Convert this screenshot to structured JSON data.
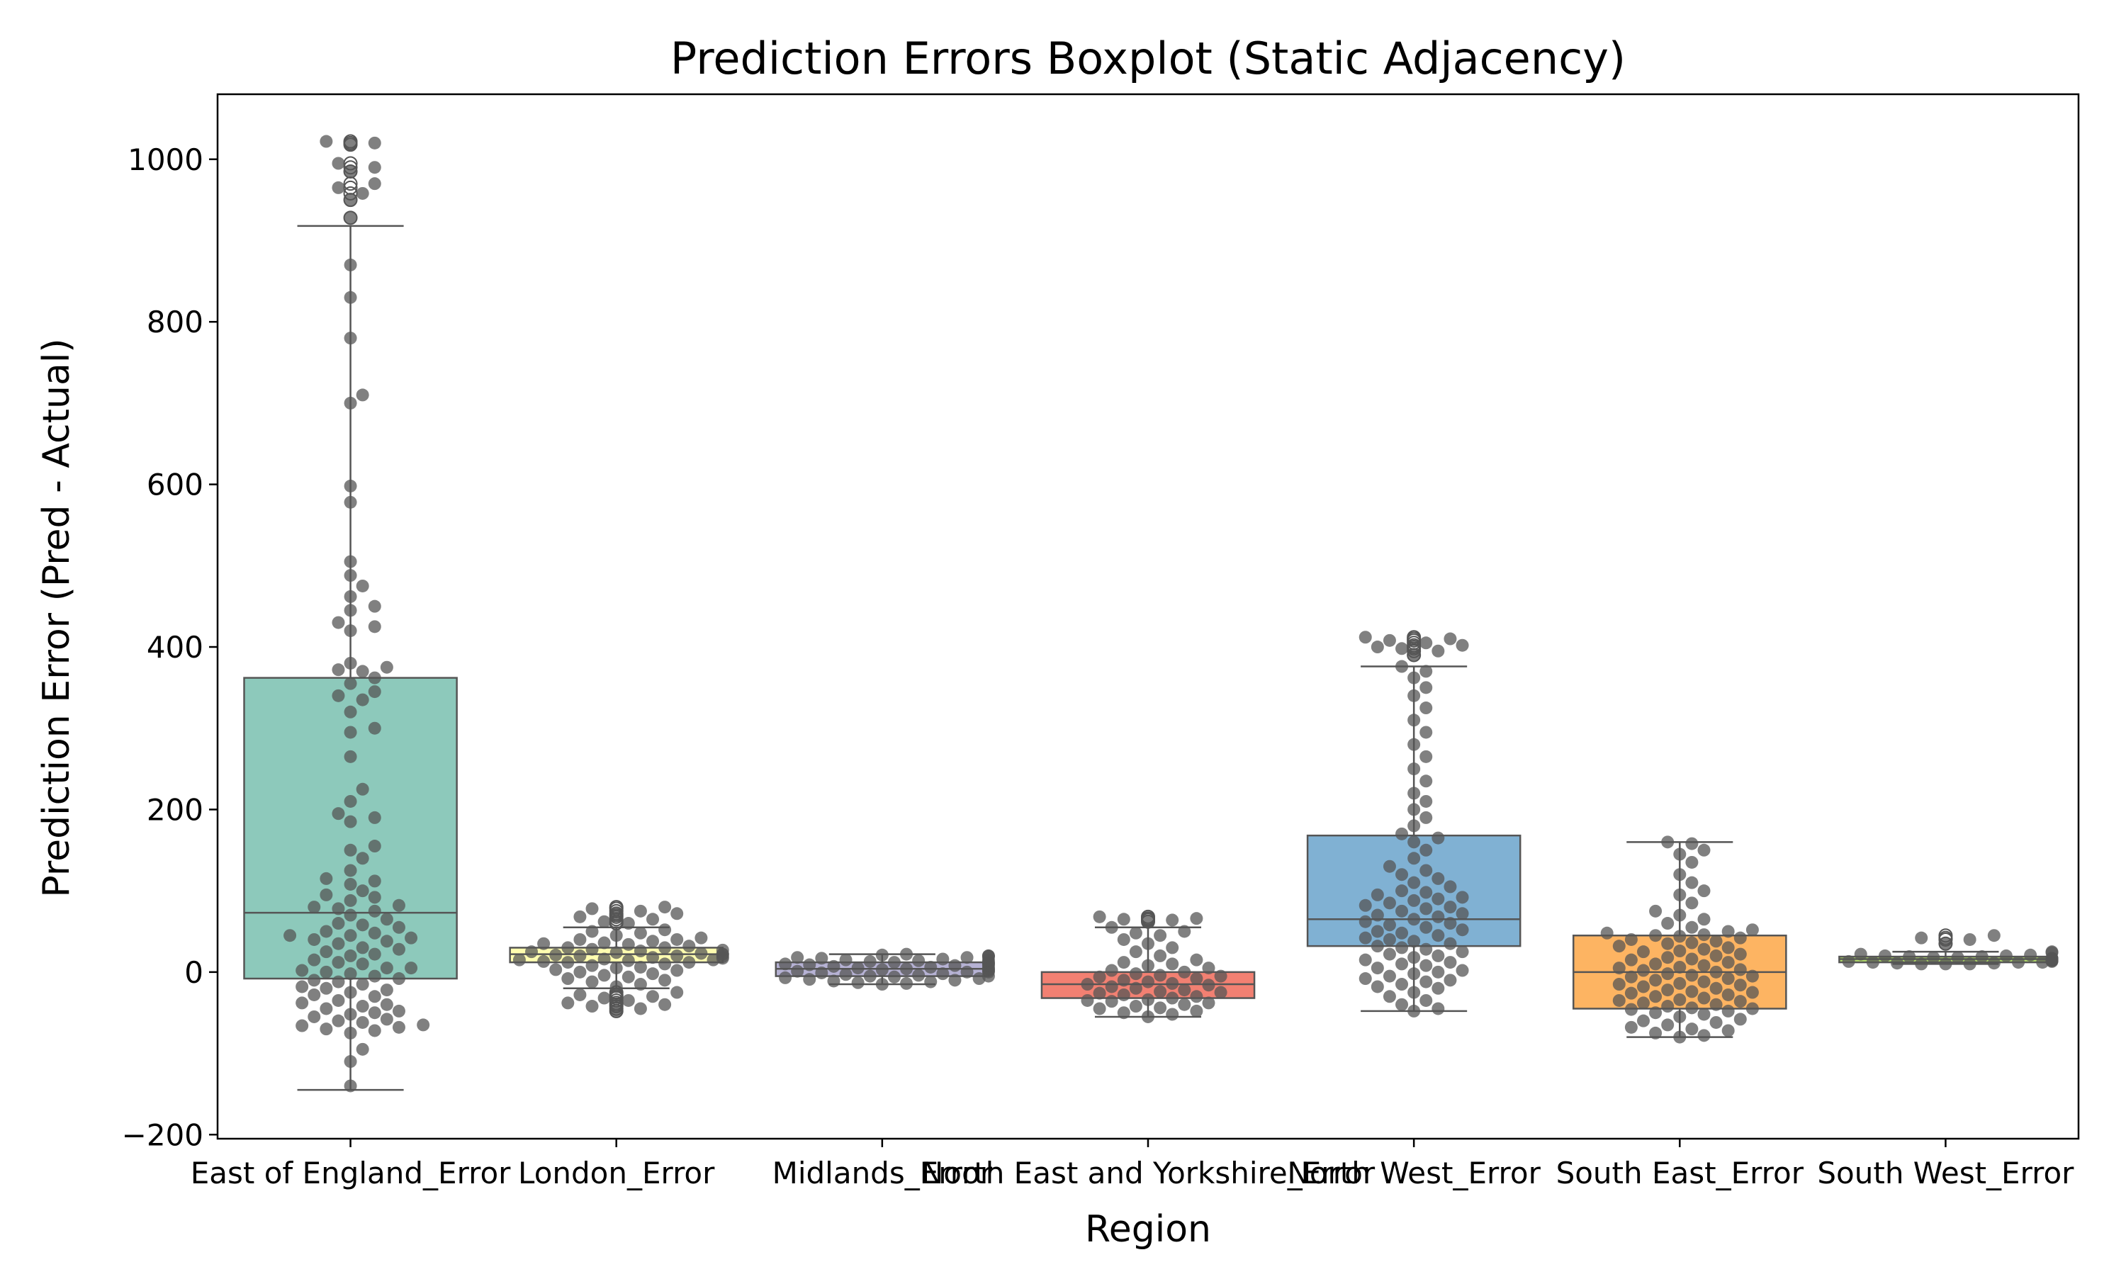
{
  "chart_data": {
    "type": "box",
    "title": "Prediction Errors Boxplot (Static Adjacency)",
    "xlabel": "Region",
    "ylabel": "Prediction Error (Pred - Actual)",
    "ylim": [
      -205,
      1080
    ],
    "yticks": [
      {
        "value": -200,
        "label": "−200"
      },
      {
        "value": 0,
        "label": "0"
      },
      {
        "value": 200,
        "label": "200"
      },
      {
        "value": 400,
        "label": "400"
      },
      {
        "value": 600,
        "label": "600"
      },
      {
        "value": 800,
        "label": "800"
      },
      {
        "value": 1000,
        "label": "1000"
      }
    ],
    "grid": false,
    "overlay": "swarm",
    "point_color": "#555555",
    "categories": [
      "East of England_Error",
      "London_Error",
      "Midlands_Error",
      "North East and Yorkshire_Error",
      "North West_Error",
      "South East_Error",
      "South West_Error"
    ],
    "boxes": [
      {
        "name": "East of England_Error",
        "color": "#8dc9bb",
        "whislo": -145,
        "q1": -8,
        "med": 73,
        "q3": 362,
        "whishi": 918,
        "fliers": [
          1022,
          1020,
          1018,
          995,
          990,
          985,
          970,
          965,
          958,
          950,
          928
        ],
        "points": [
          870,
          830,
          780,
          710,
          700,
          598,
          578,
          505,
          488,
          475,
          462,
          450,
          445,
          430,
          425,
          420,
          380,
          375,
          372,
          370,
          362,
          355,
          345,
          340,
          335,
          320,
          300,
          295,
          265,
          225,
          210,
          195,
          190,
          185,
          155,
          150,
          140,
          125,
          115,
          112,
          108,
          100,
          95,
          92,
          88,
          82,
          80,
          78,
          75,
          70,
          65,
          60,
          58,
          55,
          50,
          48,
          45,
          45,
          42,
          40,
          38,
          35,
          30,
          28,
          25,
          22,
          20,
          15,
          12,
          10,
          5,
          5,
          2,
          0,
          -2,
          -5,
          -8,
          -10,
          -12,
          -15,
          -18,
          -20,
          -22,
          -25,
          -28,
          -30,
          -35,
          -38,
          -40,
          -42,
          -45,
          -48,
          -50,
          -52,
          -55,
          -58,
          -60,
          -62,
          -65,
          -66,
          -68,
          -70,
          -72,
          -75,
          -95,
          -110,
          -140
        ]
      },
      {
        "name": "London_Error",
        "color": "#fffdb0",
        "whislo": -20,
        "q1": 12,
        "med": 22,
        "q3": 30,
        "whishi": 55,
        "fliers": [
          80,
          78,
          75,
          72,
          70,
          68,
          65,
          62,
          60,
          -25,
          -28,
          -30,
          -32,
          -35,
          -38,
          -40,
          -42,
          -45,
          -48
        ],
        "points": [
          52,
          50,
          48,
          45,
          42,
          40,
          40,
          38,
          36,
          35,
          34,
          32,
          30,
          30,
          28,
          27,
          26,
          25,
          24,
          23,
          22,
          22,
          21,
          20,
          20,
          19,
          18,
          17,
          16,
          15,
          15,
          14,
          13,
          12,
          12,
          10,
          8,
          6,
          5,
          3,
          2,
          0,
          -2,
          -4,
          -6,
          -8,
          -10,
          -12,
          -15,
          -18
        ]
      },
      {
        "name": "Midlands_Error",
        "color": "#b6b2d4",
        "whislo": -15,
        "q1": -5,
        "med": 4,
        "q3": 12,
        "whishi": 22,
        "fliers": [],
        "points": [
          22,
          21,
          20,
          20,
          19,
          18,
          18,
          17,
          16,
          15,
          15,
          14,
          13,
          12,
          12,
          11,
          10,
          10,
          9,
          8,
          8,
          7,
          6,
          5,
          5,
          4,
          4,
          3,
          2,
          2,
          1,
          0,
          0,
          -1,
          -2,
          -3,
          -4,
          -5,
          -5,
          -6,
          -7,
          -8,
          -9,
          -10,
          -11,
          -12,
          -13,
          -14,
          -15
        ]
      },
      {
        "name": "North East and Yorkshire_Error",
        "color": "#f28072",
        "whislo": -55,
        "q1": -32,
        "med": -15,
        "q3": 0,
        "whishi": 55,
        "fliers": [
          68,
          66,
          65,
          64,
          62
        ],
        "points": [
          55,
          50,
          48,
          45,
          40,
          35,
          30,
          25,
          20,
          15,
          12,
          10,
          8,
          5,
          2,
          0,
          -2,
          -4,
          -5,
          -6,
          -8,
          -10,
          -12,
          -14,
          -15,
          -16,
          -18,
          -20,
          -22,
          -24,
          -25,
          -26,
          -28,
          -30,
          -32,
          -34,
          -35,
          -36,
          -38,
          -40,
          -42,
          -44,
          -45,
          -48,
          -50,
          -52,
          -55
        ]
      },
      {
        "name": "North West_Error",
        "color": "#80b1d3",
        "whislo": -48,
        "q1": 32,
        "med": 65,
        "q3": 168,
        "whishi": 376,
        "fliers": [
          412,
          410,
          408,
          405,
          402,
          400,
          398,
          395,
          390
        ],
        "points": [
          376,
          370,
          362,
          350,
          340,
          325,
          310,
          295,
          280,
          265,
          250,
          235,
          220,
          210,
          200,
          190,
          180,
          170,
          165,
          160,
          150,
          140,
          130,
          125,
          120,
          115,
          110,
          105,
          100,
          98,
          95,
          92,
          90,
          88,
          85,
          82,
          80,
          78,
          75,
          72,
          70,
          68,
          65,
          62,
          60,
          58,
          55,
          52,
          50,
          48,
          45,
          42,
          40,
          38,
          35,
          32,
          30,
          28,
          25,
          22,
          20,
          18,
          15,
          12,
          10,
          8,
          5,
          2,
          0,
          -2,
          -5,
          -8,
          -10,
          -12,
          -15,
          -18,
          -20,
          -25,
          -30,
          -35,
          -40,
          -45,
          -48
        ]
      },
      {
        "name": "South East_Error",
        "color": "#fdb462",
        "whislo": -80,
        "q1": -45,
        "med": 0,
        "q3": 45,
        "whishi": 160,
        "fliers": [],
        "points": [
          160,
          158,
          150,
          145,
          135,
          120,
          110,
          100,
          95,
          85,
          75,
          70,
          65,
          60,
          55,
          52,
          50,
          48,
          46,
          45,
          44,
          42,
          40,
          38,
          36,
          35,
          32,
          30,
          28,
          26,
          25,
          22,
          20,
          18,
          16,
          15,
          12,
          10,
          8,
          6,
          5,
          3,
          2,
          0,
          -2,
          -4,
          -5,
          -6,
          -8,
          -10,
          -12,
          -14,
          -15,
          -16,
          -18,
          -20,
          -22,
          -24,
          -25,
          -26,
          -28,
          -30,
          -32,
          -34,
          -35,
          -36,
          -38,
          -40,
          -42,
          -44,
          -45,
          -46,
          -48,
          -50,
          -52,
          -55,
          -58,
          -60,
          -62,
          -65,
          -68,
          -70,
          -72,
          -75,
          -78,
          -80
        ]
      },
      {
        "name": "South West_Error",
        "color": "#b3de69",
        "whislo": 10,
        "q1": 12,
        "med": 16,
        "q3": 19,
        "whishi": 25,
        "fliers": [
          45,
          42,
          40,
          35
        ],
        "points": [
          25,
          24,
          22,
          21,
          20,
          20,
          19,
          19,
          18,
          18,
          17,
          17,
          16,
          16,
          16,
          15,
          15,
          15,
          14,
          14,
          13,
          13,
          12,
          12,
          12,
          11,
          11,
          10,
          10,
          10
        ]
      }
    ]
  }
}
